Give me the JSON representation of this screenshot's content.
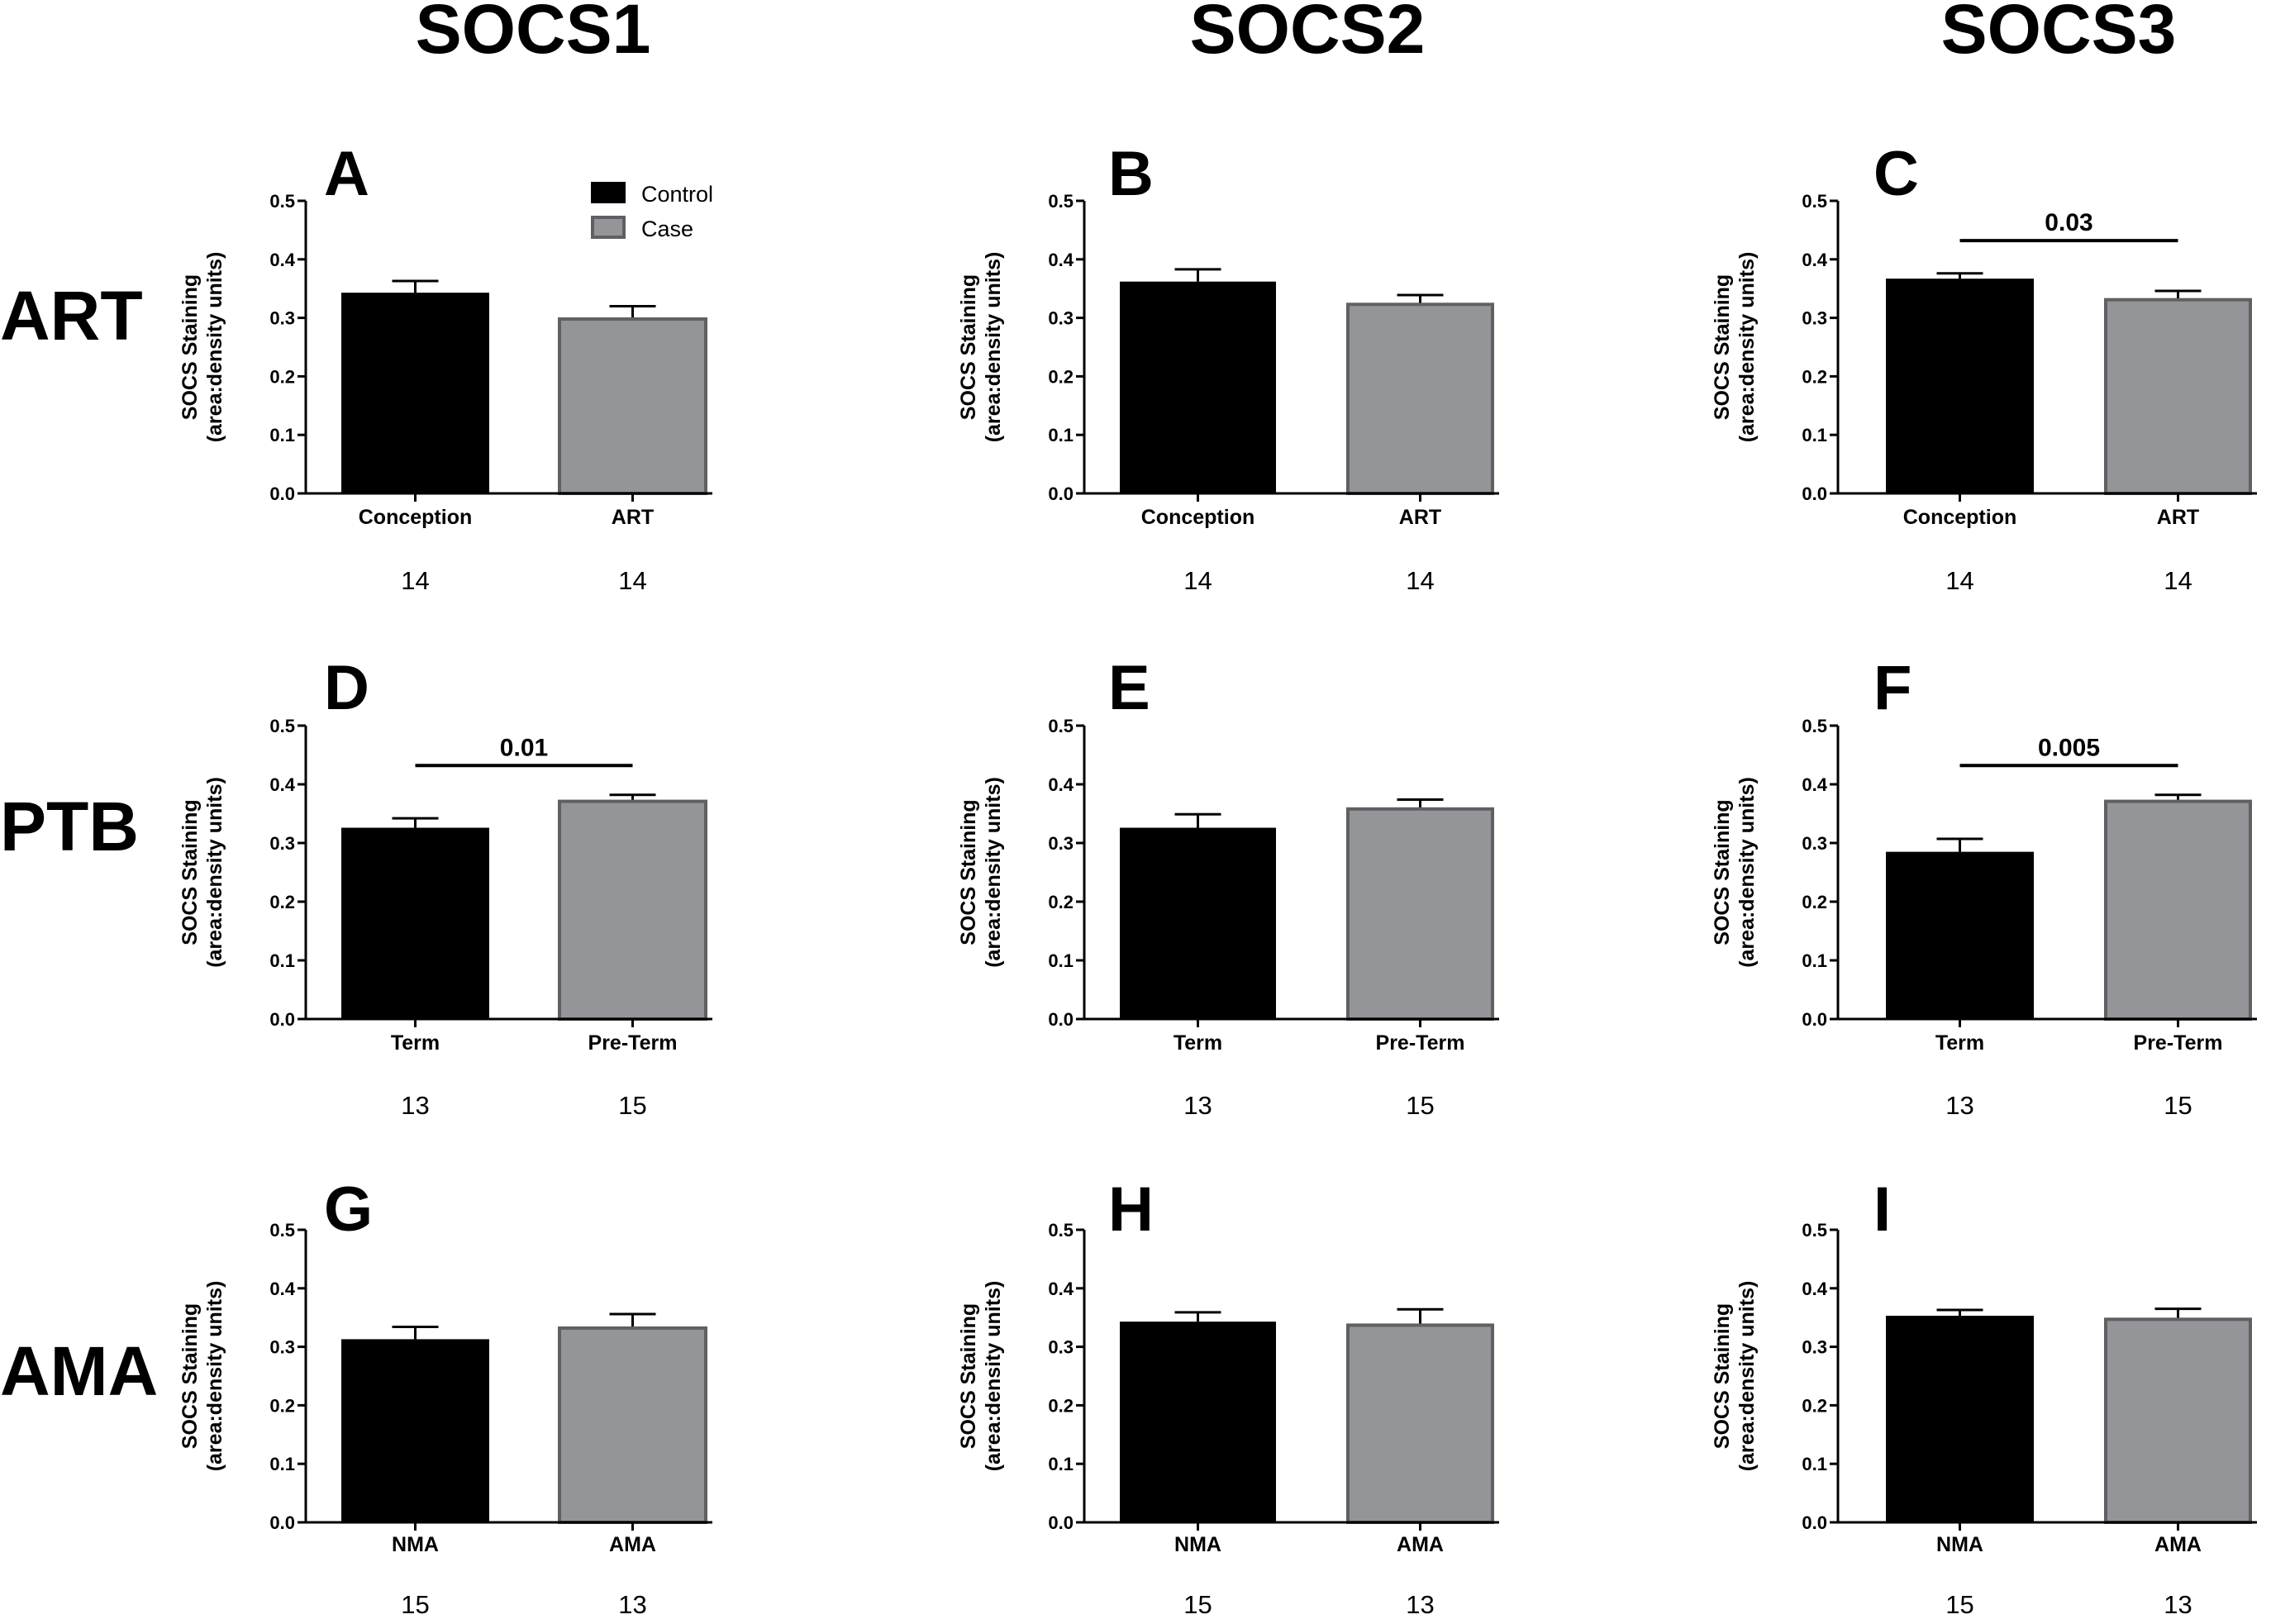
{
  "column_headers": [
    "SOCS1",
    "SOCS2",
    "SOCS3"
  ],
  "row_headers": [
    "ART",
    "PTB",
    "AMA"
  ],
  "legend": {
    "items": [
      {
        "label": "Control",
        "color": "#000000"
      },
      {
        "label": "Case",
        "color": "#939598"
      }
    ]
  },
  "colors": {
    "control": "#000000",
    "case": "#939598",
    "case_border": "#606062"
  },
  "chart_data": [
    {
      "type": "bar",
      "panel": "A",
      "row": "ART",
      "column": "SOCS1",
      "categories": [
        "Conception",
        "ART"
      ],
      "values": [
        0.343,
        0.298
      ],
      "error": [
        0.02,
        0.022
      ],
      "n": [
        "14",
        "14"
      ],
      "ylabel": "SOCS Staining (area:density units)",
      "ylim": [
        0,
        0.5
      ],
      "yticks": [
        "0.0",
        "0.1",
        "0.2",
        "0.3",
        "0.4",
        "0.5"
      ],
      "pvalue": null
    },
    {
      "type": "bar",
      "panel": "B",
      "row": "ART",
      "column": "SOCS2",
      "categories": [
        "Conception",
        "ART"
      ],
      "values": [
        0.362,
        0.323
      ],
      "error": [
        0.021,
        0.016
      ],
      "n": [
        "14",
        "14"
      ],
      "ylabel": "SOCS Staining (area:density units)",
      "ylim": [
        0,
        0.5
      ],
      "yticks": [
        "0.0",
        "0.1",
        "0.2",
        "0.3",
        "0.4",
        "0.5"
      ],
      "pvalue": null
    },
    {
      "type": "bar",
      "panel": "C",
      "row": "ART",
      "column": "SOCS3",
      "categories": [
        "Conception",
        "ART"
      ],
      "values": [
        0.367,
        0.331
      ],
      "error": [
        0.009,
        0.015
      ],
      "n": [
        "14",
        "14"
      ],
      "ylabel": "SOCS Staining (area:density units)",
      "ylim": [
        0,
        0.5
      ],
      "yticks": [
        "0.0",
        "0.1",
        "0.2",
        "0.3",
        "0.4",
        "0.5"
      ],
      "pvalue": "0.03"
    },
    {
      "type": "bar",
      "panel": "D",
      "row": "PTB",
      "column": "SOCS1",
      "categories": [
        "Term",
        "Pre-Term"
      ],
      "values": [
        0.326,
        0.371
      ],
      "error": [
        0.016,
        0.011
      ],
      "n": [
        "13",
        "15"
      ],
      "ylabel": "SOCS Staining (area:density units)",
      "ylim": [
        0,
        0.5
      ],
      "yticks": [
        "0.0",
        "0.1",
        "0.2",
        "0.3",
        "0.4",
        "0.5"
      ],
      "pvalue": "0.01"
    },
    {
      "type": "bar",
      "panel": "E",
      "row": "PTB",
      "column": "SOCS2",
      "categories": [
        "Term",
        "Pre-Term"
      ],
      "values": [
        0.326,
        0.358
      ],
      "error": [
        0.023,
        0.016
      ],
      "n": [
        "13",
        "15"
      ],
      "ylabel": "SOCS Staining (area:density units)",
      "ylim": [
        0,
        0.5
      ],
      "yticks": [
        "0.0",
        "0.1",
        "0.2",
        "0.3",
        "0.4",
        "0.5"
      ],
      "pvalue": null
    },
    {
      "type": "bar",
      "panel": "F",
      "row": "PTB",
      "column": "SOCS3",
      "categories": [
        "Term",
        "Pre-Term"
      ],
      "values": [
        0.285,
        0.371
      ],
      "error": [
        0.022,
        0.011
      ],
      "n": [
        "13",
        "15"
      ],
      "ylabel": "SOCS Staining (area:density units)",
      "ylim": [
        0,
        0.5
      ],
      "yticks": [
        "0.0",
        "0.1",
        "0.2",
        "0.3",
        "0.4",
        "0.5"
      ],
      "pvalue": "0.005"
    },
    {
      "type": "bar",
      "panel": "G",
      "row": "AMA",
      "column": "SOCS1",
      "categories": [
        "NMA",
        "AMA"
      ],
      "values": [
        0.313,
        0.332
      ],
      "error": [
        0.021,
        0.024
      ],
      "n": [
        "15",
        "13"
      ],
      "ylabel": "SOCS Staining (area:density units)",
      "ylim": [
        0,
        0.5
      ],
      "yticks": [
        "0.0",
        "0.1",
        "0.2",
        "0.3",
        "0.4",
        "0.5"
      ],
      "pvalue": null
    },
    {
      "type": "bar",
      "panel": "H",
      "row": "AMA",
      "column": "SOCS2",
      "categories": [
        "NMA",
        "AMA"
      ],
      "values": [
        0.343,
        0.337
      ],
      "error": [
        0.016,
        0.027
      ],
      "n": [
        "15",
        "13"
      ],
      "ylabel": "SOCS Staining (area:density units)",
      "ylim": [
        0,
        0.5
      ],
      "yticks": [
        "0.0",
        "0.1",
        "0.2",
        "0.3",
        "0.4",
        "0.5"
      ],
      "pvalue": null
    },
    {
      "type": "bar",
      "panel": "I",
      "row": "AMA",
      "column": "SOCS3",
      "categories": [
        "NMA",
        "AMA"
      ],
      "values": [
        0.353,
        0.347
      ],
      "error": [
        0.01,
        0.018
      ],
      "n": [
        "15",
        "13"
      ],
      "ylabel": "SOCS Staining (area:density units)",
      "ylim": [
        0,
        0.5
      ],
      "yticks": [
        "0.0",
        "0.1",
        "0.2",
        "0.3",
        "0.4",
        "0.5"
      ],
      "pvalue": null
    }
  ]
}
